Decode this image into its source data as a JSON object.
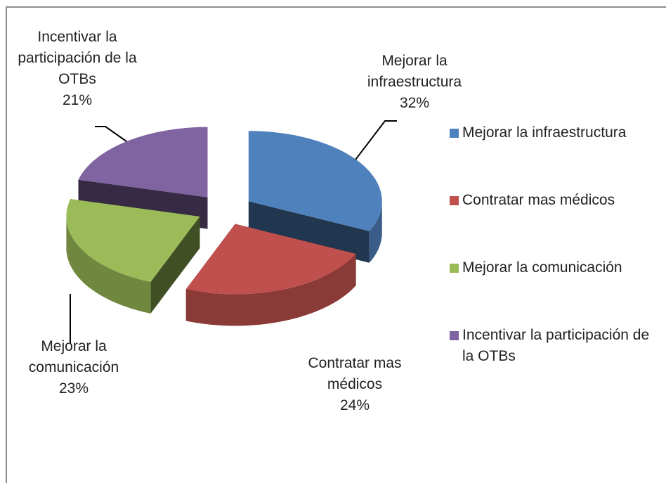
{
  "chart_data": {
    "type": "pie",
    "categories": [
      "Mejorar la infraestructura",
      "Contratar mas médicos",
      "Mejorar la comunicación",
      "Incentivar la participación de la OTBs"
    ],
    "values": [
      32,
      24,
      23,
      21
    ],
    "value_labels": [
      "32%",
      "24%",
      "23%",
      "21%"
    ],
    "colors": [
      "#4f81bd",
      "#c0504d",
      "#9bbb59",
      "#8064a2"
    ],
    "legend": "right"
  }
}
